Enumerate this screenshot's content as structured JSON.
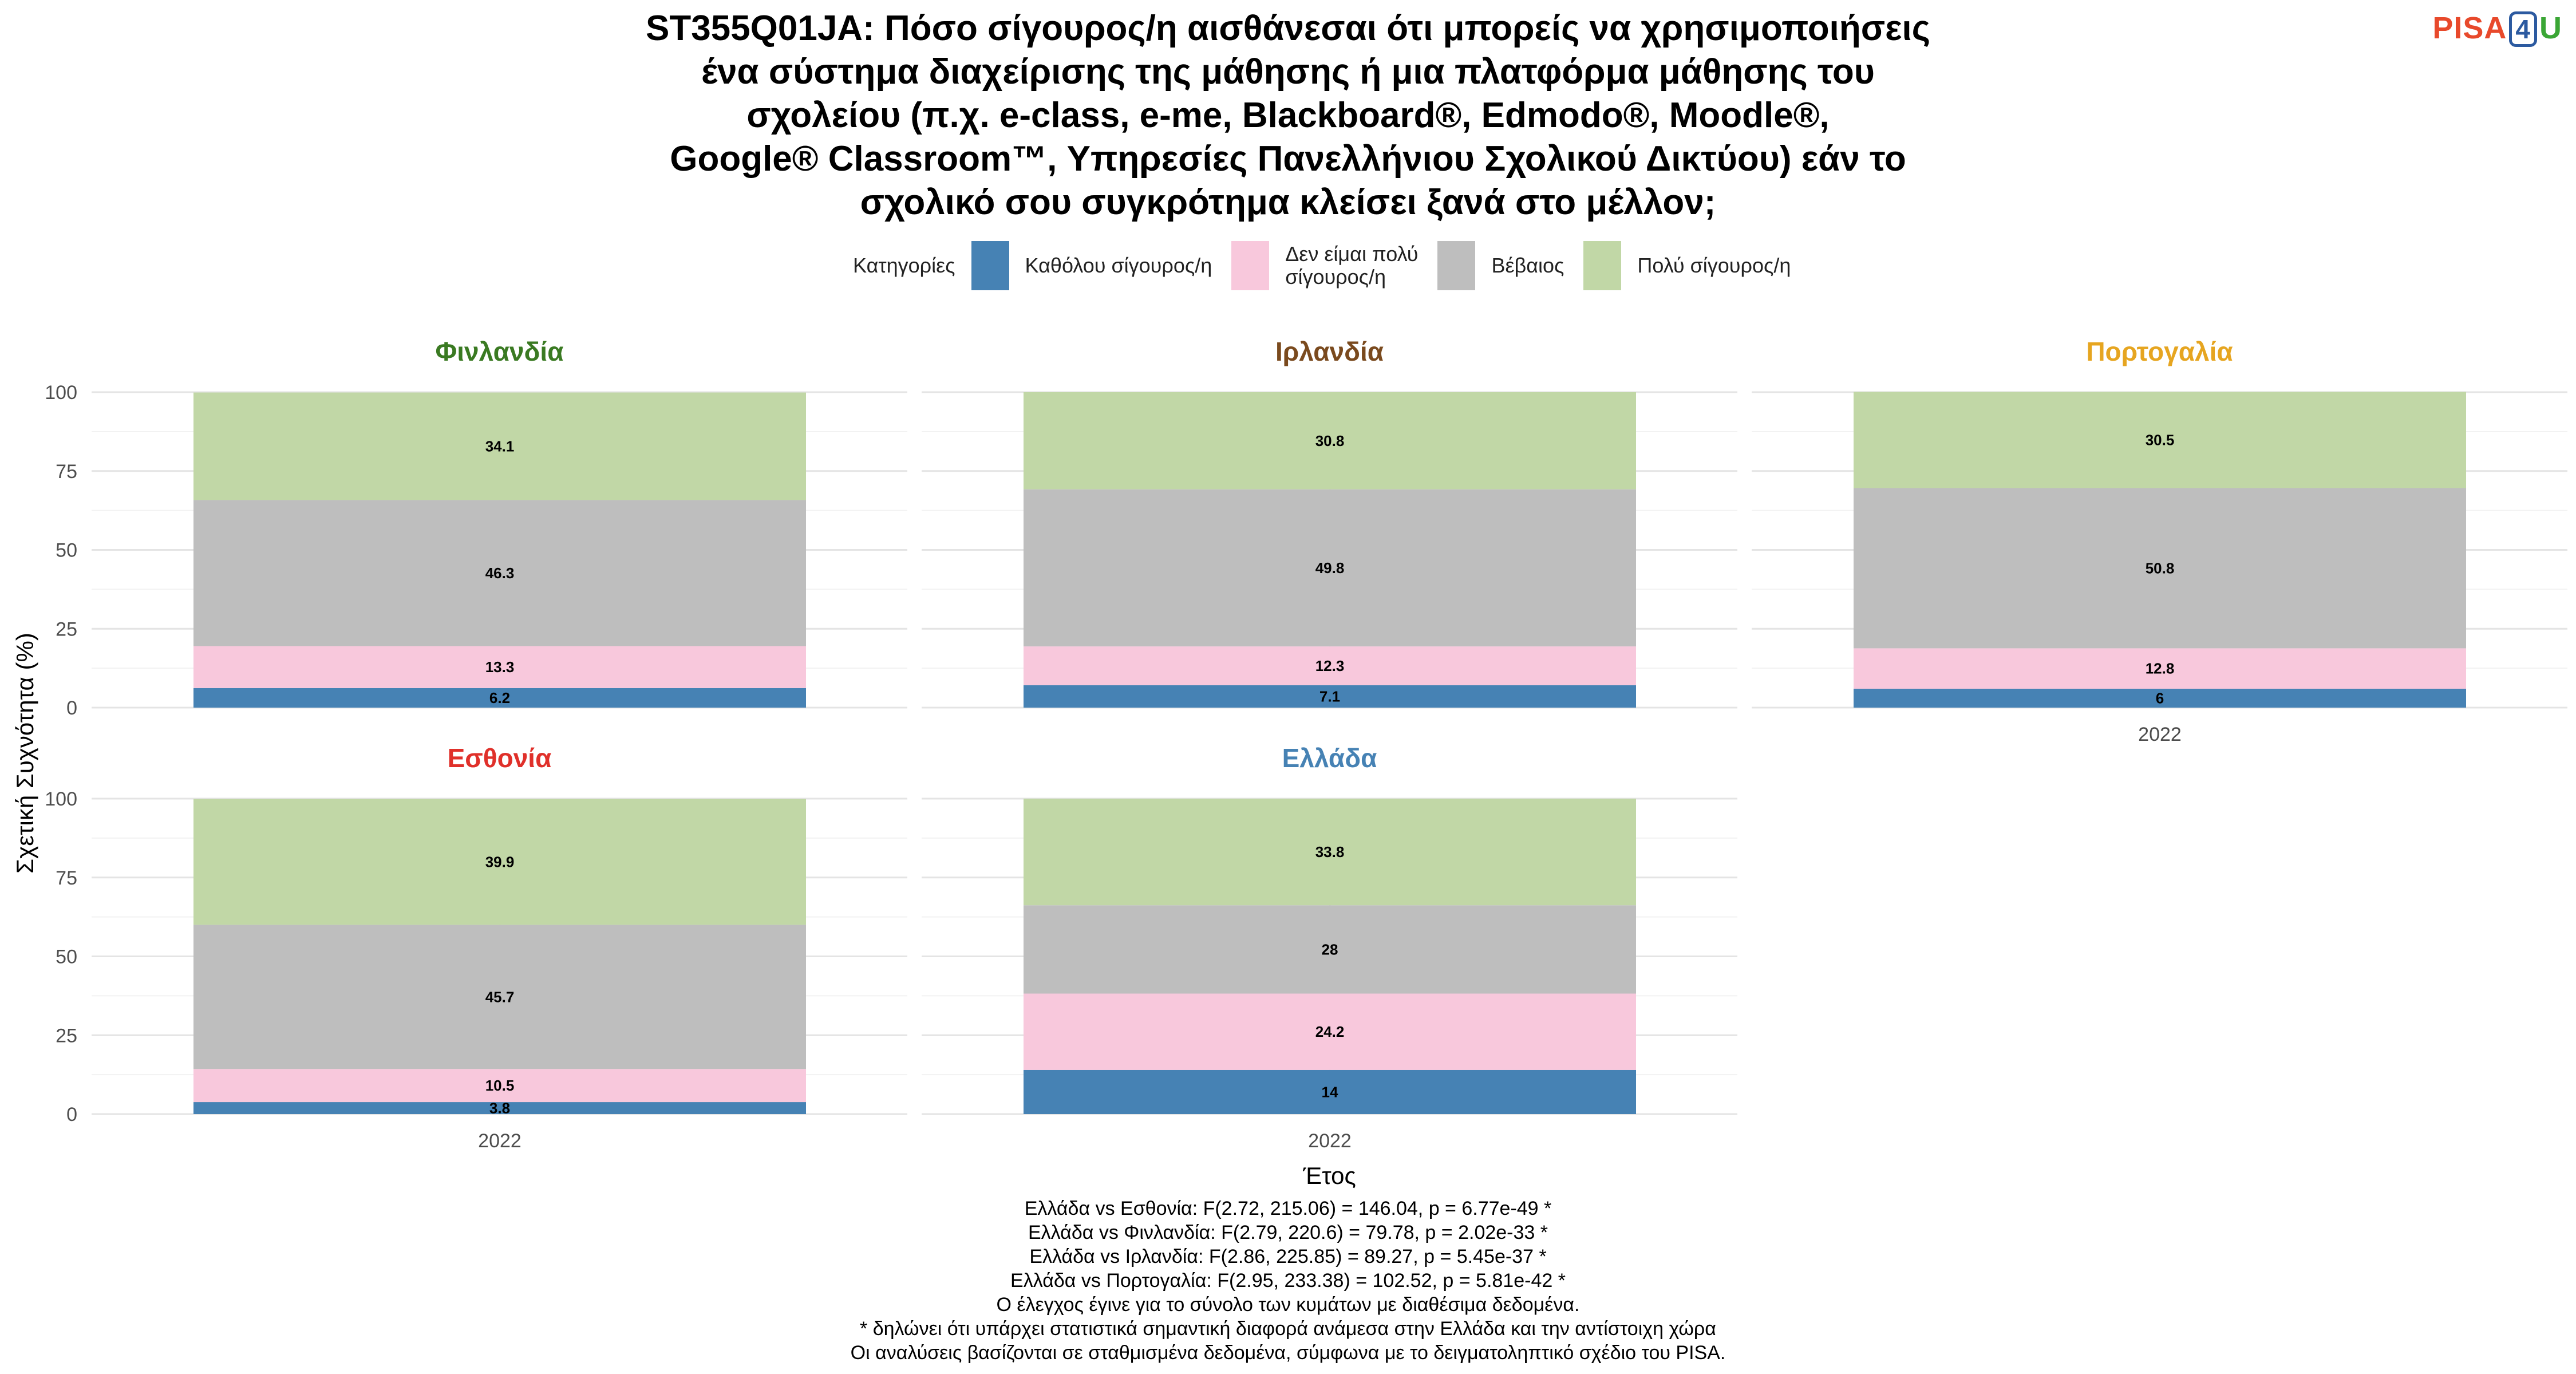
{
  "title_lines": [
    "ST355Q01JA: Πόσο σίγουρος/η αισθάνεσαι ότι μπορείς να χρησιμοποιήσεις",
    "ένα σύστημα διαχείρισης της μάθησης ή μια πλατφόρμα μάθησης του",
    "σχολείου (π.χ. e-class, e-me, Blackboard®, Edmodo®, Moodle®,",
    "Google® Classroom™, Υπηρεσίες Πανελλήνιου Σχολικού Δικτύου) εάν το",
    "σχολικό σου συγκρότημα κλείσει ξανά στο μέλλον;"
  ],
  "logo": {
    "part1": "PISA",
    "part2": "4",
    "part3": "U"
  },
  "legend": {
    "title": "Κατηγορίες",
    "items": [
      {
        "label": "Καθόλου σίγουρος/η",
        "color": "#4682b4"
      },
      {
        "label": "Δεν είμαι πολύ\nσίγουρος/η",
        "color": "#f8c8dc"
      },
      {
        "label": "Βέβαιος",
        "color": "#bebebe"
      },
      {
        "label": "Πολύ σίγουρος/η",
        "color": "#c1d7a6"
      }
    ]
  },
  "chart_data": {
    "type": "bar",
    "stacked": true,
    "ylabel": "Σχετική Συχνότητα (%)",
    "xlabel": "Έτος",
    "ylim": [
      0,
      100
    ],
    "yticks": [
      0,
      25,
      50,
      75,
      100
    ],
    "categories": [
      "2022"
    ],
    "series_order": [
      "Καθόλου σίγουρος/η",
      "Δεν είμαι πολύ σίγουρος/η",
      "Βέβαιος",
      "Πολύ σίγουρος/η"
    ],
    "panels": [
      {
        "name": "Φινλανδία",
        "color": "#3a7a22",
        "year": "2022",
        "values": [
          6.2,
          13.3,
          46.3,
          34.1
        ]
      },
      {
        "name": "Ιρλανδία",
        "color": "#7a4a1e",
        "year": "2022",
        "values": [
          7.1,
          12.3,
          49.8,
          30.8
        ]
      },
      {
        "name": "Πορτογαλία",
        "color": "#e6a520",
        "year": "2022",
        "values": [
          6,
          12.8,
          50.8,
          30.5
        ]
      },
      {
        "name": "Εσθονία",
        "color": "#e0302a",
        "year": "2022",
        "values": [
          3.8,
          10.5,
          45.7,
          39.9
        ]
      },
      {
        "name": "Ελλάδα",
        "color": "#4682b4",
        "year": "2022",
        "values": [
          14,
          24.2,
          28,
          33.8
        ]
      }
    ]
  },
  "footnotes": [
    "Ελλάδα vs Εσθονία: F(2.72, 215.06) = 146.04, p = 6.77e-49 *",
    "Ελλάδα vs Φινλανδία: F(2.79, 220.6) = 79.78, p = 2.02e-33 *",
    "Ελλάδα vs Ιρλανδία: F(2.86, 225.85) = 89.27, p = 5.45e-37 *",
    "Ελλάδα vs Πορτογαλία: F(2.95, 233.38) = 102.52, p = 5.81e-42 *",
    "Ο έλεγχος έγινε για το σύνολο των κυμάτων με διαθέσιμα δεδομένα.",
    "* δηλώνει ότι υπάρχει στατιστικά σημαντική διαφορά ανάμεσα στην Ελλάδα και την αντίστοιχη χώρα",
    "Οι αναλύσεις βασίζονται σε σταθμισμένα δεδομένα, σύμφωνα με το δειγματοληπτικό σχέδιο του PISA."
  ]
}
